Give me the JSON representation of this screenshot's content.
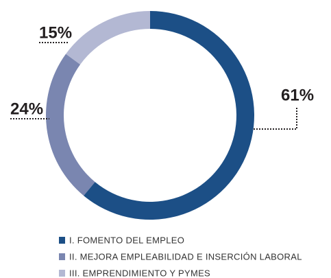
{
  "chart_data": {
    "type": "pie",
    "categories": [
      "I. FOMENTO DEL EMPLEO",
      "II. MEJORA EMPLEABILIDAD E INSERCIÓN LABORAL",
      "III. EMPRENDIMIENTO Y PYMES"
    ],
    "values": [
      61,
      24,
      15
    ],
    "value_labels": [
      "61%",
      "24%",
      "15%"
    ],
    "colors": [
      "#1c4f86",
      "#7a86b0",
      "#b3b8d3"
    ],
    "donut": true
  }
}
